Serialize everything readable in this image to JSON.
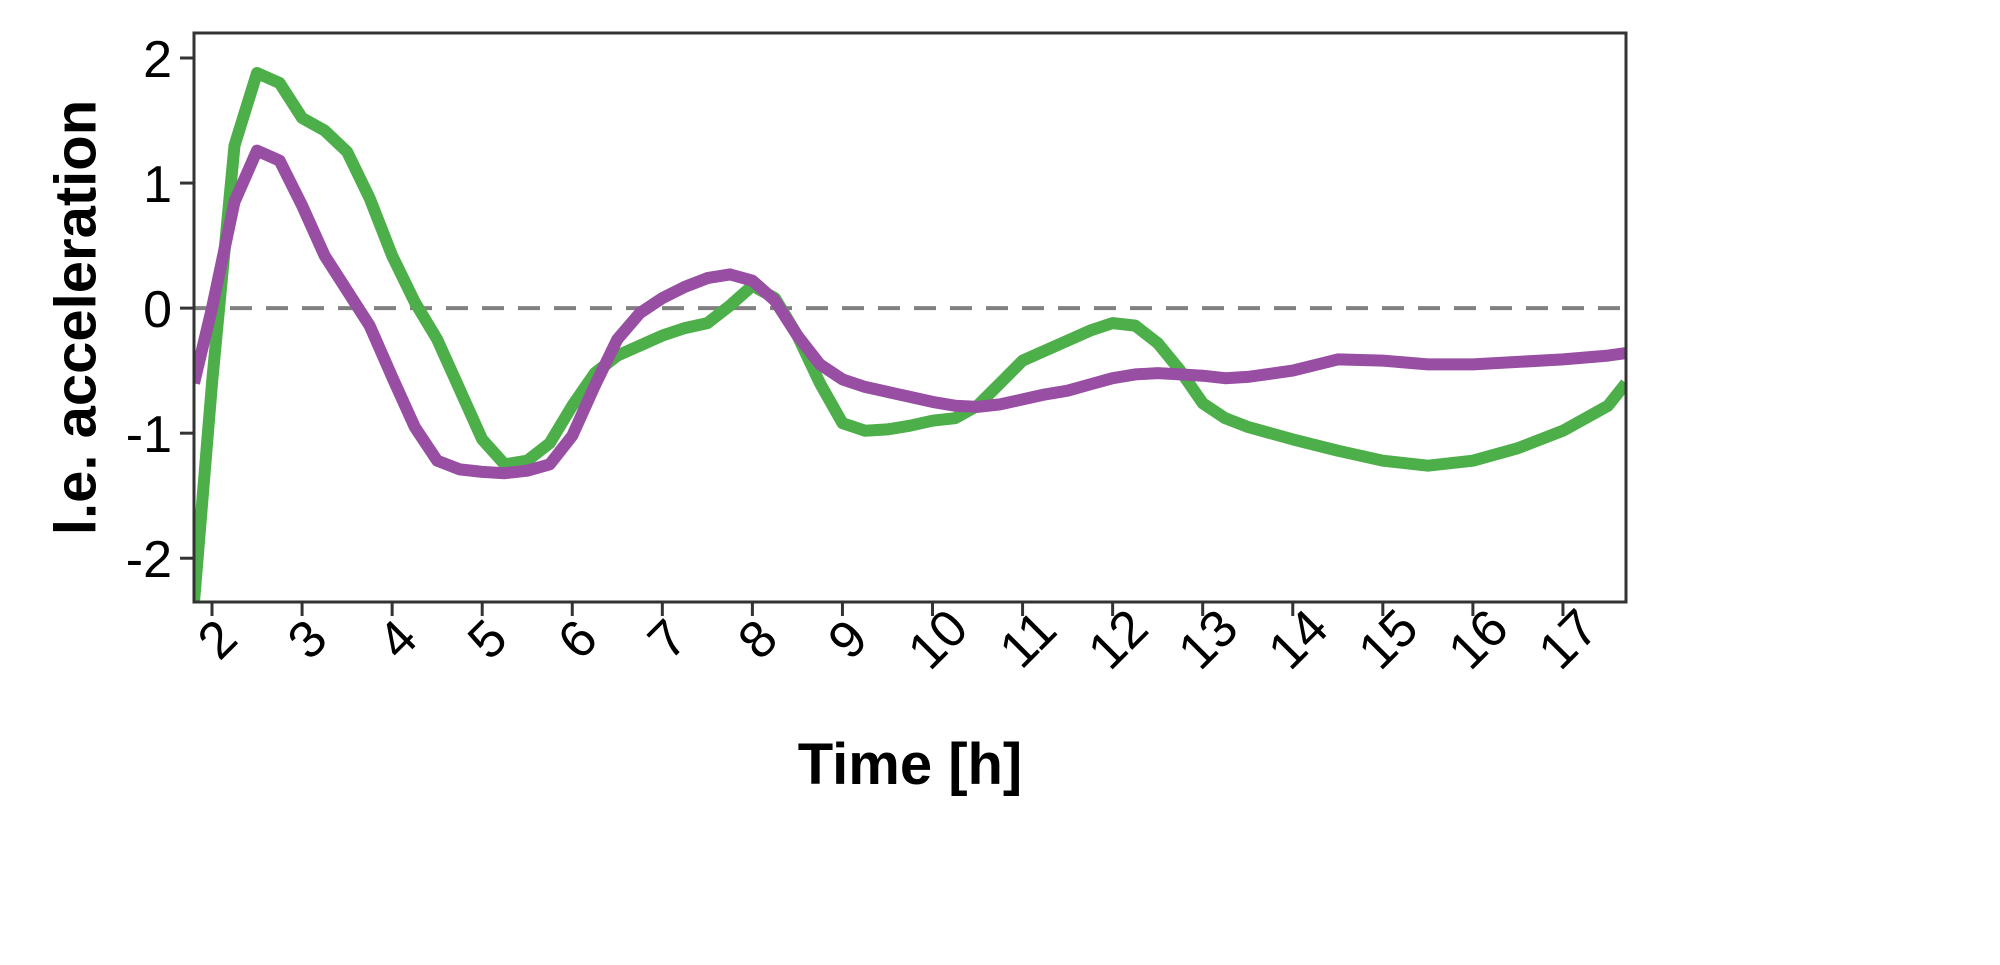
{
  "chart_data": {
    "type": "line",
    "xlabel": "Time [h]",
    "ylabel": "l.e. acceleration",
    "xlim": [
      1.8,
      17.7
    ],
    "ylim": [
      -2.35,
      2.2
    ],
    "xticks": [
      2,
      3,
      4,
      5,
      6,
      7,
      8,
      9,
      10,
      11,
      12,
      13,
      14,
      15,
      16,
      17
    ],
    "yticks": [
      2,
      1,
      0,
      -1,
      -2
    ],
    "reference_line": {
      "y": 0,
      "style": "dashed",
      "color": "#808080"
    },
    "grid": false,
    "legend": "none",
    "series": [
      {
        "color": "#4daf4a",
        "x": [
          1.8,
          2.0,
          2.25,
          2.5,
          2.75,
          3.0,
          3.25,
          3.5,
          3.75,
          4.0,
          4.25,
          4.5,
          4.75,
          5.0,
          5.25,
          5.5,
          5.75,
          6.0,
          6.25,
          6.5,
          6.75,
          7.0,
          7.25,
          7.5,
          7.75,
          8.0,
          8.25,
          8.5,
          8.75,
          9.0,
          9.25,
          9.5,
          9.75,
          10.0,
          10.25,
          10.5,
          10.75,
          11.0,
          11.25,
          11.5,
          11.75,
          12.0,
          12.25,
          12.5,
          12.75,
          13.0,
          13.25,
          13.5,
          14.0,
          14.5,
          15.0,
          15.5,
          16.0,
          16.5,
          17.0,
          17.5,
          17.7
        ],
        "values": [
          -2.35,
          -0.6,
          1.3,
          1.88,
          1.8,
          1.52,
          1.42,
          1.25,
          0.88,
          0.42,
          0.05,
          -0.25,
          -0.65,
          -1.05,
          -1.25,
          -1.22,
          -1.08,
          -0.78,
          -0.52,
          -0.38,
          -0.3,
          -0.22,
          -0.16,
          -0.12,
          0.02,
          0.18,
          0.08,
          -0.22,
          -0.6,
          -0.92,
          -0.98,
          -0.97,
          -0.94,
          -0.9,
          -0.88,
          -0.78,
          -0.6,
          -0.42,
          -0.34,
          -0.26,
          -0.18,
          -0.12,
          -0.14,
          -0.28,
          -0.5,
          -0.76,
          -0.88,
          -0.95,
          -1.05,
          -1.14,
          -1.22,
          -1.26,
          -1.22,
          -1.12,
          -0.98,
          -0.78,
          -0.6
        ]
      },
      {
        "color": "#984ea3",
        "x": [
          1.8,
          2.0,
          2.25,
          2.5,
          2.75,
          3.0,
          3.25,
          3.5,
          3.75,
          4.0,
          4.25,
          4.5,
          4.75,
          5.0,
          5.25,
          5.5,
          5.75,
          6.0,
          6.25,
          6.5,
          6.75,
          7.0,
          7.25,
          7.5,
          7.75,
          8.0,
          8.25,
          8.5,
          8.75,
          9.0,
          9.25,
          9.5,
          9.75,
          10.0,
          10.25,
          10.5,
          10.75,
          11.0,
          11.25,
          11.5,
          11.75,
          12.0,
          12.25,
          12.5,
          12.75,
          13.0,
          13.25,
          13.5,
          14.0,
          14.5,
          15.0,
          15.5,
          16.0,
          16.5,
          17.0,
          17.5,
          17.7
        ],
        "values": [
          -0.6,
          0.0,
          0.85,
          1.26,
          1.18,
          0.82,
          0.42,
          0.14,
          -0.14,
          -0.55,
          -0.95,
          -1.22,
          -1.29,
          -1.31,
          -1.32,
          -1.3,
          -1.25,
          -1.02,
          -0.62,
          -0.25,
          -0.04,
          0.08,
          0.17,
          0.24,
          0.27,
          0.22,
          0.06,
          -0.22,
          -0.45,
          -0.57,
          -0.63,
          -0.67,
          -0.71,
          -0.75,
          -0.78,
          -0.79,
          -0.77,
          -0.73,
          -0.69,
          -0.66,
          -0.61,
          -0.56,
          -0.53,
          -0.52,
          -0.53,
          -0.54,
          -0.56,
          -0.55,
          -0.5,
          -0.41,
          -0.42,
          -0.45,
          -0.45,
          -0.43,
          -0.41,
          -0.38,
          -0.36
        ]
      }
    ]
  }
}
